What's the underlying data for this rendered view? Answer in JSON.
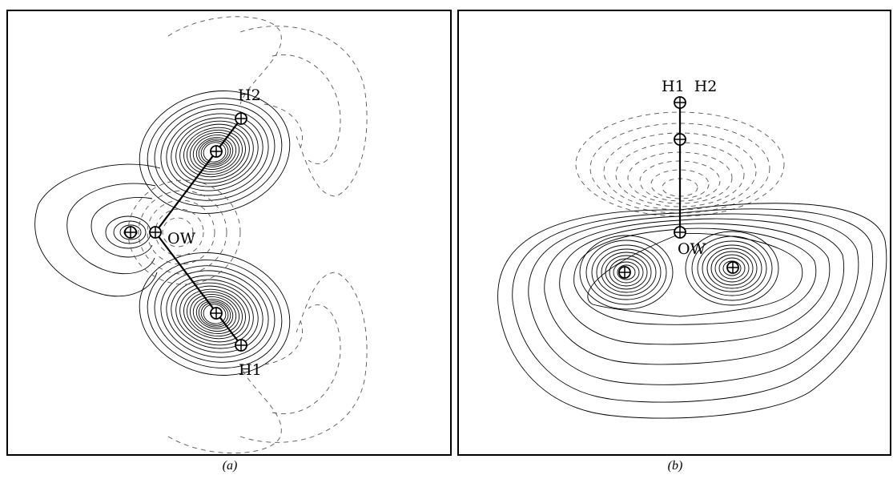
{
  "panels": [
    {
      "id": "a",
      "caption": "(a)",
      "atoms": [
        {
          "label": "H2"
        },
        {
          "label": "OW"
        },
        {
          "label": "H1"
        }
      ]
    },
    {
      "id": "b",
      "caption": "(b)",
      "atoms": [
        {
          "label": "H1  H2"
        },
        {
          "label": "OW"
        }
      ]
    }
  ],
  "colors": {
    "line": "#000000",
    "dashed": "#555555",
    "background": "#ffffff"
  },
  "icons": {
    "atom_marker": "circled-plus-icon",
    "bond": "line"
  }
}
